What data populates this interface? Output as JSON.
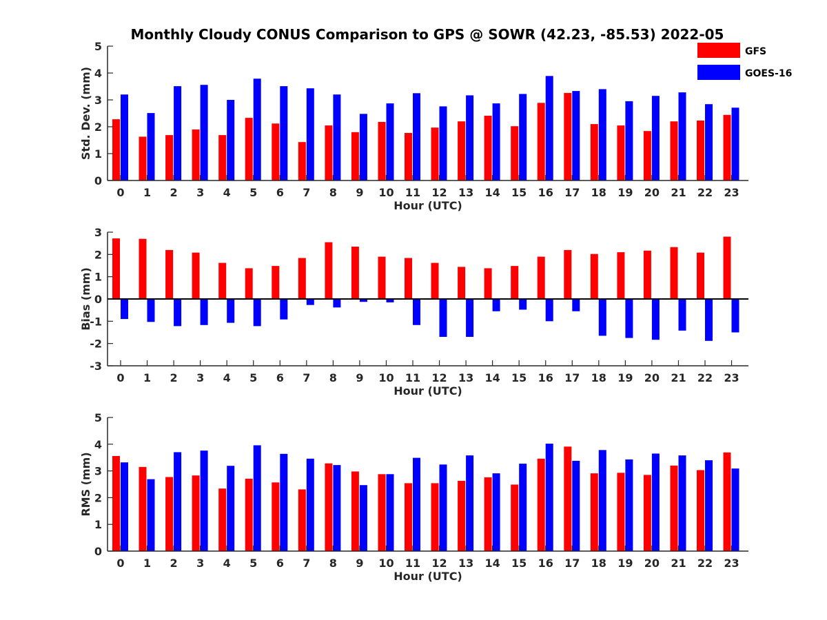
{
  "title": "Monthly Cloudy CONUS Comparison to GPS @ SOWR (42.23, -85.53) 2022-05",
  "legend": {
    "placement": "top-right",
    "items": [
      {
        "label": "GFS",
        "color": "#ff0000"
      },
      {
        "label": "GOES-16",
        "color": "#0000ff"
      }
    ]
  },
  "chart_data": [
    {
      "type": "bar",
      "categories": [
        "0",
        "1",
        "2",
        "3",
        "4",
        "5",
        "6",
        "7",
        "8",
        "9",
        "10",
        "11",
        "12",
        "13",
        "14",
        "15",
        "16",
        "17",
        "18",
        "19",
        "20",
        "21",
        "22",
        "23"
      ],
      "xlabel": "Hour (UTC)",
      "ylabel": "Std. Dev. (mm)",
      "ylim": [
        0,
        5
      ],
      "yticks": [
        "0",
        "1",
        "2",
        "3",
        "4",
        "5"
      ],
      "grid": false,
      "series": [
        {
          "name": "GFS",
          "color": "#ff0000",
          "values": [
            2.28,
            1.63,
            1.69,
            1.9,
            1.69,
            2.33,
            2.12,
            1.43,
            2.05,
            1.8,
            2.18,
            1.77,
            1.97,
            2.2,
            2.41,
            2.02,
            2.89,
            3.26,
            2.1,
            2.05,
            1.84,
            2.2,
            2.23,
            2.44
          ]
        },
        {
          "name": "GOES-16",
          "color": "#0000ff",
          "values": [
            3.2,
            2.51,
            3.51,
            3.56,
            3.0,
            3.79,
            3.51,
            3.43,
            3.2,
            2.48,
            2.87,
            3.25,
            2.76,
            3.17,
            2.87,
            3.22,
            3.89,
            3.33,
            3.4,
            2.95,
            3.15,
            3.28,
            2.84,
            2.71
          ]
        }
      ]
    },
    {
      "type": "bar",
      "categories": [
        "0",
        "1",
        "2",
        "3",
        "4",
        "5",
        "6",
        "7",
        "8",
        "9",
        "10",
        "11",
        "12",
        "13",
        "14",
        "15",
        "16",
        "17",
        "18",
        "19",
        "20",
        "21",
        "22",
        "23"
      ],
      "xlabel": "Hour (UTC)",
      "ylabel": "Bias (mm)",
      "ylim": [
        -3,
        3
      ],
      "yticks": [
        "-3",
        "-2",
        "-1",
        "0",
        "1",
        "2",
        "3"
      ],
      "grid": false,
      "series": [
        {
          "name": "GFS",
          "color": "#ff0000",
          "values": [
            2.72,
            2.7,
            2.2,
            2.08,
            1.62,
            1.38,
            1.48,
            1.84,
            2.55,
            2.35,
            1.9,
            1.84,
            1.62,
            1.44,
            1.38,
            1.48,
            1.9,
            2.2,
            2.02,
            2.1,
            2.17,
            2.33,
            2.08,
            2.8
          ]
        },
        {
          "name": "GOES-16",
          "color": "#0000ff",
          "values": [
            -0.9,
            -1.03,
            -1.22,
            -1.17,
            -1.07,
            -1.22,
            -0.92,
            -0.27,
            -0.38,
            -0.13,
            -0.15,
            -1.17,
            -1.7,
            -1.7,
            -0.55,
            -0.48,
            -1.0,
            -0.55,
            -1.65,
            -1.75,
            -1.83,
            -1.42,
            -1.88,
            -1.5
          ]
        }
      ]
    },
    {
      "type": "bar",
      "categories": [
        "0",
        "1",
        "2",
        "3",
        "4",
        "5",
        "6",
        "7",
        "8",
        "9",
        "10",
        "11",
        "12",
        "13",
        "14",
        "15",
        "16",
        "17",
        "18",
        "19",
        "20",
        "21",
        "22",
        "23"
      ],
      "xlabel": "Hour (UTC)",
      "ylabel": "RMS (mm)",
      "ylim": [
        0,
        5
      ],
      "yticks": [
        "0",
        "1",
        "2",
        "3",
        "4",
        "5"
      ],
      "grid": false,
      "series": [
        {
          "name": "GFS",
          "color": "#ff0000",
          "values": [
            3.56,
            3.15,
            2.77,
            2.83,
            2.34,
            2.71,
            2.57,
            2.31,
            3.28,
            2.98,
            2.88,
            2.54,
            2.54,
            2.63,
            2.76,
            2.49,
            3.46,
            3.91,
            2.91,
            2.93,
            2.85,
            3.2,
            3.03,
            3.69
          ]
        },
        {
          "name": "GOES-16",
          "color": "#0000ff",
          "values": [
            3.32,
            2.69,
            3.7,
            3.76,
            3.19,
            3.96,
            3.64,
            3.46,
            3.22,
            2.47,
            2.88,
            3.49,
            3.24,
            3.58,
            2.91,
            3.27,
            4.02,
            3.38,
            3.78,
            3.43,
            3.65,
            3.58,
            3.4,
            3.09
          ]
        }
      ]
    }
  ]
}
